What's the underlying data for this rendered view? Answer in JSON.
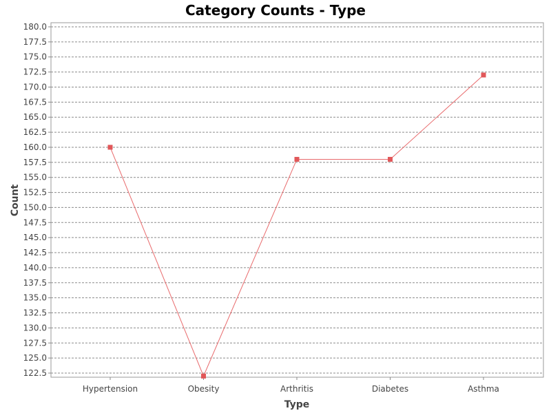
{
  "chart_data": {
    "type": "line",
    "title": "Category Counts - Type",
    "xlabel": "Type",
    "ylabel": "Count",
    "categories": [
      "Hypertension",
      "Obesity",
      "Arthritis",
      "Diabetes",
      "Asthma"
    ],
    "series": [
      {
        "values": [
          160,
          122,
          158,
          158,
          172
        ]
      }
    ],
    "ylim": [
      122.5,
      180.0
    ],
    "ytick_step": 2.5,
    "grid": true,
    "legend": "none",
    "colors": {
      "series": "#e15759",
      "line": "#e8696b"
    }
  }
}
